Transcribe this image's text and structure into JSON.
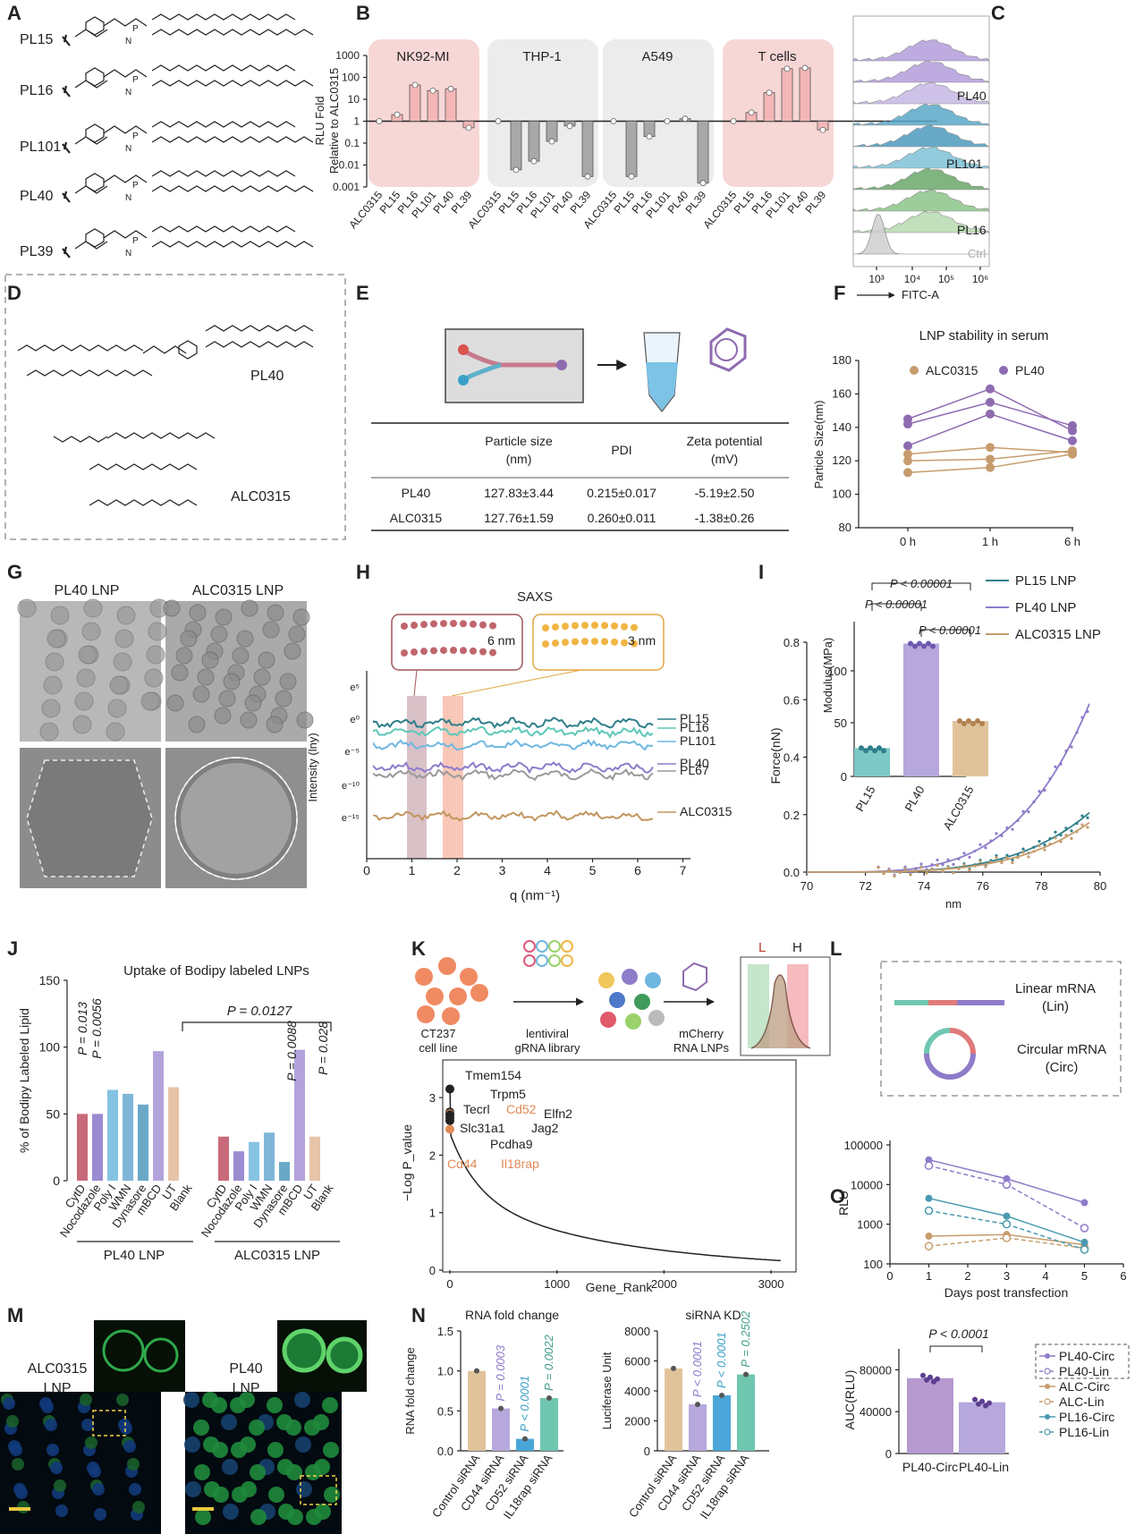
{
  "panel_letters": [
    "A",
    "B",
    "C",
    "D",
    "E",
    "F",
    "G",
    "H",
    "I",
    "J",
    "K",
    "L",
    "M",
    "N",
    "O"
  ],
  "A": {
    "labels": [
      "PL15",
      "PL16",
      "PL101",
      "PL40",
      "PL39"
    ]
  },
  "B": {
    "ylabel1": "RLU Fold",
    "ylabel2": "Relative to ALC0315",
    "yticks": [
      "1000",
      "100",
      "10",
      "1",
      "0.1",
      "0.01",
      "0.001"
    ],
    "groups": [
      "NK92-MI",
      "THP-1",
      "A549",
      "T cells"
    ],
    "xticks": [
      "ALC0315",
      "PL15",
      "PL16",
      "PL101",
      "PL40",
      "PL39"
    ],
    "group_colors": [
      "#f7d6d6",
      "#ececec",
      "#ececec",
      "#f7d6d6"
    ],
    "bar_colors": {
      "pink": "#f4b6b6",
      "gray": "#a8a8a8"
    }
  },
  "C": {
    "labels": [
      "PL40",
      "PL101",
      "PL16",
      "Ctrl"
    ],
    "xticks": [
      "10³",
      "10⁴",
      "10⁵",
      "10⁶"
    ],
    "xlabel": "FITC-A"
  },
  "D": {
    "labels": [
      "PL40",
      "ALC0315"
    ]
  },
  "E": {
    "headers": [
      "Particle size (nm)",
      "PDI",
      "Zeta potential (mV)"
    ],
    "header_lines": [
      [
        "Particle size",
        "(nm)"
      ],
      [
        "PDI"
      ],
      [
        "Zeta potential",
        "(mV)"
      ]
    ],
    "rows": [
      {
        "name": "PL40",
        "size": "127.83±3.44",
        "pdi": "0.215±0.017",
        "zeta": "-5.19±2.50"
      },
      {
        "name": "ALC0315",
        "size": "127.76±1.59",
        "pdi": "0.260±0.011",
        "zeta": "-1.38±0.26"
      }
    ]
  },
  "F": {
    "title": "LNP stability in serum",
    "legend": [
      "ALC0315",
      "PL40"
    ],
    "ylabel": "Particle Size(nm)",
    "yticks": [
      "180",
      "160",
      "140",
      "120",
      "100",
      "80"
    ],
    "xticks": [
      "0 h",
      "1 h",
      "6 h"
    ]
  },
  "G": {
    "labels": [
      "PL40 LNP",
      "ALC0315 LNP"
    ]
  },
  "H": {
    "title": "SAXS",
    "d1": "6 nm",
    "d2": "3 nm",
    "ylabel": "Intensity (lny)",
    "yticks": [
      "e⁵",
      "e⁰",
      "e⁻⁵",
      "e⁻¹⁰",
      "e⁻¹⁵"
    ],
    "xticks": [
      "0",
      "1",
      "2",
      "3",
      "4",
      "5",
      "6",
      "7"
    ],
    "xlabel": "q (nm⁻¹)",
    "series": [
      "PL15",
      "PL16",
      "PL101",
      "PL40",
      "PL67",
      "ALC0315"
    ]
  },
  "I": {
    "pvals": [
      "P < 0.00001",
      "P < 0.00001",
      "P < 0.00001"
    ],
    "legend": [
      "PL15 LNP",
      "PL40 LNP",
      "ALC0315 LNP"
    ],
    "inset_ylabel": "Modulus(MPa)",
    "inset_yticks": [
      "100",
      "50",
      "0"
    ],
    "inset_xticks": [
      "PL15",
      "PL40",
      "ALC0315"
    ],
    "ylabel": "Force(nN)",
    "yticks": [
      "0.8",
      "0.6",
      "0.4",
      "0.2",
      "0.0"
    ],
    "xticks": [
      "70",
      "72",
      "74",
      "76",
      "78",
      "80"
    ],
    "xlabel": "nm"
  },
  "J": {
    "title": "Uptake of Bodipy labeled LNPs",
    "ylabel": "% of Bodipy Labeled Lipid",
    "yticks": [
      "150",
      "100",
      "50",
      "0"
    ],
    "xticks": [
      "CytD",
      "Nocodazole",
      "Poly I",
      "WMN",
      "Dynasore",
      "mBCD",
      "UT",
      "Blank"
    ],
    "groups": [
      "PL40 LNP",
      "ALC0315 LNP"
    ],
    "pvals": [
      "P = 0.013",
      "P = 0.0056",
      "P = 0.0088",
      "P = 0.028"
    ],
    "bracket": "P = 0.0127"
  },
  "K": {
    "labels": [
      [
        "ALC0315",
        "LNP"
      ],
      [
        "PL40",
        "LNP"
      ]
    ]
  },
  "L": {
    "steps": [
      [
        "CT237",
        "cell line"
      ],
      [
        "lentiviral",
        "gRNA library"
      ],
      [
        "mCherry",
        "RNA  LNPs"
      ]
    ],
    "gate_L": "L",
    "gate_H": "H",
    "ylabel": "−Log P_value",
    "yticks": [
      "3",
      "2",
      "1",
      "0"
    ],
    "xticks": [
      "0",
      "1000",
      "2000",
      "3000"
    ],
    "xlabel": "Gene_Rank",
    "genes": [
      "Tmem154",
      "Trpm5",
      "Tecrl",
      "Cd52",
      "Elfn2",
      "Slc31a1",
      "Jag2",
      "Pcdha9",
      "Cd44",
      "Il18rap"
    ]
  },
  "M": {
    "titles": [
      "RNA fold change",
      "siRNA KD"
    ],
    "ylabels": [
      "RNA fold change",
      "Luciferase Unit"
    ],
    "yticks1": [
      "1.5",
      "1.0",
      "0.5",
      "0.0"
    ],
    "yticks2": [
      "8000",
      "6000",
      "4000",
      "2000",
      "0"
    ],
    "xticks": [
      "Control siRNA",
      "CD44 siRNA",
      "CD52 siRNA",
      "IL18rap siRNA"
    ],
    "pvals1": [
      "P = 0.0003",
      "P < 0.0001",
      "P = 0.0022"
    ],
    "pvals2": [
      "P < 0.0001",
      "P < 0.0001",
      "P = 0.2502"
    ]
  },
  "N": {
    "labels": [
      [
        "Linear mRNA",
        "(Lin)"
      ],
      [
        "Circular mRNA",
        "(Circ)"
      ]
    ]
  },
  "O": {
    "ylabel": "RLU",
    "yticks": [
      "100000",
      "10000",
      "1000",
      "100"
    ],
    "xticks": [
      "0",
      "1",
      "2",
      "3",
      "4",
      "5",
      "6"
    ],
    "xlabel": "Days post transfection",
    "auc_p": "P < 0.0001",
    "auc_ylabel": "AUC(RLU)",
    "auc_yticks": [
      "80000",
      "40000",
      "0"
    ],
    "auc_xticks": [
      "PL40-Circ",
      "PL40-Lin"
    ],
    "legend": [
      "PL40-Circ",
      "PL40-Lin",
      "ALC-Circ",
      "ALC-Lin",
      "PL16-Circ",
      "PL16-Lin"
    ]
  }
}
